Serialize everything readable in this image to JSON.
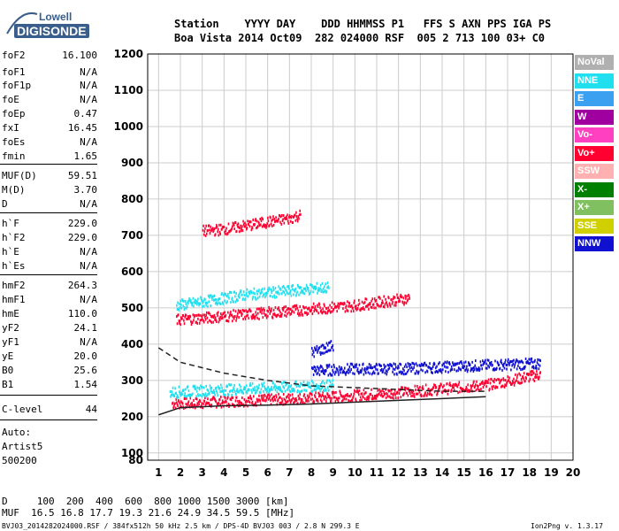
{
  "logo": {
    "top": "Lowell",
    "bottom": "DIGISONDE"
  },
  "header": {
    "line1": "Station    YYYY DAY    DDD HHMMSS P1   FFS S AXN PPS IGA PS",
    "line2": "Boa Vista 2014 Oct09  282 024000 RSF  005 2 713 100 03+ C0"
  },
  "params": [
    {
      "name": "foF2",
      "value": "16.100"
    },
    {
      "name": "foF1",
      "value": "N/A"
    },
    {
      "name": "foF1p",
      "value": "N/A"
    },
    {
      "name": "foE",
      "value": "N/A"
    },
    {
      "name": "foEp",
      "value": "0.47"
    },
    {
      "name": "fxI",
      "value": "16.45"
    },
    {
      "name": "foEs",
      "value": "N/A"
    },
    {
      "name": "fmin",
      "value": "1.65"
    },
    {
      "name": "MUF(D)",
      "value": "59.51"
    },
    {
      "name": "M(D)",
      "value": "3.70"
    },
    {
      "name": "D",
      "value": "N/A"
    },
    {
      "name": "h`F",
      "value": "229.0"
    },
    {
      "name": "h`F2",
      "value": "229.0"
    },
    {
      "name": "h`E",
      "value": "N/A"
    },
    {
      "name": "h`Es",
      "value": "N/A"
    },
    {
      "name": "hmF2",
      "value": "264.3"
    },
    {
      "name": "hmF1",
      "value": "N/A"
    },
    {
      "name": "hmE",
      "value": "110.0"
    },
    {
      "name": "yF2",
      "value": "24.1"
    },
    {
      "name": "yF1",
      "value": "N/A"
    },
    {
      "name": "yE",
      "value": "20.0"
    },
    {
      "name": "B0",
      "value": "25.6"
    },
    {
      "name": "B1",
      "value": "1.54"
    },
    {
      "name": "C-level",
      "value": "44"
    }
  ],
  "auto": {
    "label": "Auto:",
    "artist": "Artist5",
    "version": "500200"
  },
  "legend": [
    {
      "label": "NoVal",
      "bg": "#b0b0b0",
      "fg": "#ffffff"
    },
    {
      "label": "NNE",
      "bg": "#20e0f0",
      "fg": "#ffffff"
    },
    {
      "label": "E",
      "bg": "#3ca0f0",
      "fg": "#ffffff"
    },
    {
      "label": "W",
      "bg": "#a000a0",
      "fg": "#ffffff"
    },
    {
      "label": "Vo-",
      "bg": "#ff40c0",
      "fg": "#ffffff"
    },
    {
      "label": "Vo+",
      "bg": "#ff0030",
      "fg": "#ffffff"
    },
    {
      "label": "SSW",
      "bg": "#ffb0b0",
      "fg": "#ffffff"
    },
    {
      "label": "X-",
      "bg": "#008000",
      "fg": "#ffffff"
    },
    {
      "label": "X+",
      "bg": "#80c060",
      "fg": "#ffffff"
    },
    {
      "label": "SSE",
      "bg": "#d0d000",
      "fg": "#ffffff"
    },
    {
      "label": "NNW",
      "bg": "#1010d0",
      "fg": "#ffffff"
    }
  ],
  "chart_data": {
    "type": "scatter",
    "xlim": [
      1,
      20
    ],
    "ylim": [
      80,
      1200
    ],
    "x_ticks": [
      1,
      2,
      3,
      4,
      5,
      6,
      7,
      8,
      9,
      10,
      11,
      12,
      13,
      14,
      15,
      16,
      17,
      18,
      19,
      20
    ],
    "y_ticks": [
      100,
      200,
      300,
      400,
      500,
      600,
      700,
      800,
      900,
      1000,
      1100,
      1200
    ],
    "y_tick_labels_extra": [
      "80"
    ],
    "grid": true,
    "traces": [
      {
        "color": "#ff0030",
        "x": [
          1.6,
          2.5,
          4,
          6,
          8,
          10,
          12,
          14,
          16,
          18.5
        ],
        "y": [
          240,
          240,
          245,
          250,
          255,
          262,
          270,
          280,
          290,
          320
        ]
      },
      {
        "color": "#1010d0",
        "x": [
          8,
          10,
          12,
          14,
          16,
          18.5
        ],
        "y": [
          330,
          335,
          335,
          340,
          345,
          350
        ]
      },
      {
        "color": "#20e0f0",
        "x": [
          1.5,
          3,
          5,
          7,
          9
        ],
        "y": [
          270,
          275,
          280,
          285,
          290
        ]
      },
      {
        "color": "#ff0030",
        "x": [
          1.8,
          4,
          6,
          8,
          10,
          12.5
        ],
        "y": [
          470,
          480,
          490,
          500,
          510,
          530
        ]
      },
      {
        "color": "#20e0f0",
        "x": [
          1.8,
          3,
          5,
          7,
          8.8
        ],
        "y": [
          510,
          520,
          540,
          550,
          560
        ]
      },
      {
        "color": "#ff0030",
        "x": [
          3,
          4,
          5,
          6,
          7,
          7.5
        ],
        "y": [
          715,
          720,
          730,
          740,
          750,
          760
        ]
      },
      {
        "color": "#1010d0",
        "x": [
          8,
          8.5,
          9
        ],
        "y": [
          380,
          390,
          400
        ]
      }
    ],
    "black_curve": {
      "x": [
        1,
        2,
        4,
        6,
        8,
        10,
        12,
        14,
        16
      ],
      "y": [
        205,
        225,
        230,
        232,
        235,
        240,
        245,
        250,
        255
      ]
    },
    "dashed_curve": {
      "x": [
        1,
        2,
        4,
        6,
        8,
        10,
        12,
        14,
        16
      ],
      "y": [
        390,
        350,
        320,
        300,
        285,
        280,
        275,
        270,
        270
      ]
    }
  },
  "footer": {
    "line1": "D     100  200  400  600  800 1000 1500 3000 [km]",
    "line2": "MUF  16.5 16.8 17.7 19.3 21.6 24.9 34.5 59.5 [MHz]",
    "line3": "BVJ03_2014282024000.RSF / 384fx512h 50 kHz 2.5 km / DPS-4D BVJ03 003 / 2.8 N 299.3 E",
    "version": "Ion2Png v. 1.3.17"
  }
}
